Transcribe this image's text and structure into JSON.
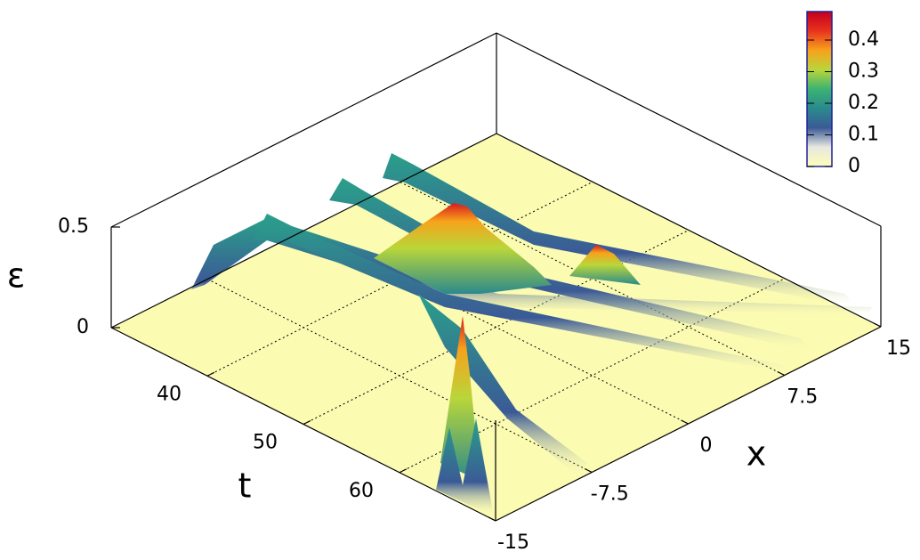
{
  "chart_data": {
    "type": "surface3d",
    "xlabel": "x",
    "ylabel": "t",
    "zlabel": "ε",
    "xlim": [
      -15,
      15
    ],
    "xticks": [
      -15,
      -7.5,
      0,
      7.5,
      15
    ],
    "ylim": [
      30,
      70
    ],
    "yticks": [
      40,
      50,
      60
    ],
    "zlim": [
      0,
      0.5
    ],
    "zticks": [
      0,
      0.5
    ],
    "grid": true,
    "colorbar": {
      "clim": [
        0,
        0.49
      ],
      "ticks": [
        0,
        0.1,
        0.2,
        0.3,
        0.4
      ],
      "colors": [
        "#fdfdb8",
        "#e8e8e0",
        "#3b5a96",
        "#2a8a8c",
        "#3cb371",
        "#b9d63a",
        "#f7a21b",
        "#e8321e",
        "#c4001c"
      ]
    }
  }
}
